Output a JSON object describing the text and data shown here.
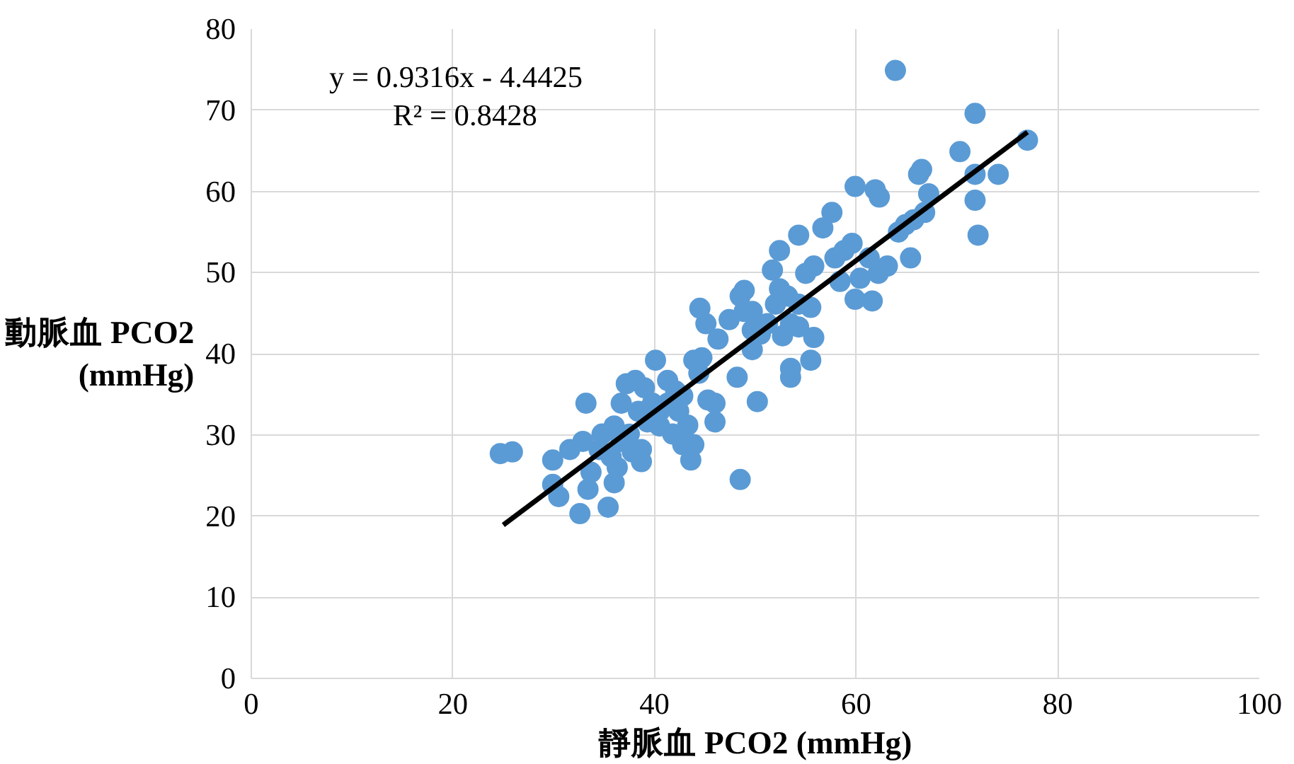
{
  "chart_data": {
    "type": "scatter",
    "xlabel": "靜脈血 PCO2 (mmHg)",
    "ylabel": "動脈血 PCO2\n(mmHg)",
    "xlim": [
      0,
      100
    ],
    "xticks": [
      0,
      20,
      40,
      60,
      80,
      100
    ],
    "ylim": [
      0,
      80
    ],
    "yticks": [
      0,
      10,
      20,
      30,
      40,
      50,
      60,
      70,
      80
    ],
    "grid": true,
    "annotations": [
      "y = 0.9316x - 4.4425",
      "R² = 0.8428"
    ],
    "series": [
      {
        "marker": "circle",
        "color": "#5b9bd5",
        "x": [
          24.7,
          25.9,
          29.9,
          29.9,
          30.5,
          32.6,
          33.2,
          33.4,
          33.7,
          31.6,
          32.9,
          34.8,
          35.4,
          36.0,
          36.3,
          36.0,
          36.7,
          37.2,
          38.1,
          39.0,
          38.4,
          37.5,
          38.7,
          38.7,
          37.8,
          39.8,
          40.1,
          40.5,
          41.3,
          42.1,
          41.8,
          42.8,
          43.3,
          43.6,
          43.9,
          43.9,
          44.7,
          44.5,
          45.1,
          45.3,
          46.0,
          46.0,
          46.3,
          48.2,
          48.5,
          48.5,
          48.9,
          48.9,
          49.7,
          49.7,
          50.5,
          50.2,
          51.2,
          51.7,
          52.4,
          52.4,
          52.7,
          53.2,
          53.5,
          53.5,
          53.5,
          54.3,
          54.3,
          55.0,
          55.5,
          55.5,
          55.8,
          55.8,
          56.7,
          57.6,
          57.9,
          58.4,
          58.8,
          59.6,
          59.9,
          59.9,
          60.4,
          61.3,
          61.6,
          61.9,
          62.3,
          62.2,
          63.1,
          63.9,
          64.2,
          64.9,
          65.4,
          65.7,
          66.2,
          66.5,
          66.8,
          67.2,
          70.3,
          71.8,
          71.8,
          71.8,
          72.1,
          74.1,
          77.0,
          34.5,
          35.7,
          36.7,
          39.3,
          40.5,
          41.3,
          42.4,
          42.8,
          44.4,
          47.4,
          49.7,
          52.0,
          54.3
        ],
        "values": [
          27.7,
          27.9,
          26.9,
          23.9,
          22.4,
          20.3,
          33.9,
          23.3,
          25.4,
          28.2,
          29.2,
          30.1,
          21.1,
          24.1,
          26.0,
          31.1,
          33.9,
          36.3,
          36.7,
          35.8,
          32.9,
          30.1,
          28.2,
          26.7,
          27.9,
          33.9,
          39.2,
          31.1,
          33.9,
          35.4,
          30.1,
          28.8,
          31.2,
          26.9,
          28.8,
          39.2,
          39.5,
          45.6,
          43.7,
          34.3,
          31.6,
          33.9,
          41.8,
          37.1,
          24.5,
          47.1,
          45.2,
          47.8,
          40.5,
          42.9,
          42.4,
          34.1,
          43.7,
          50.3,
          52.7,
          48.0,
          42.2,
          47.1,
          38.2,
          37.1,
          43.7,
          54.6,
          46.1,
          49.9,
          39.2,
          45.7,
          42.0,
          50.8,
          55.5,
          57.4,
          51.8,
          48.9,
          52.7,
          53.6,
          60.6,
          46.7,
          49.3,
          51.8,
          46.5,
          60.2,
          59.3,
          49.9,
          50.8,
          74.9,
          55.0,
          55.9,
          51.8,
          56.5,
          62.1,
          62.7,
          57.4,
          59.7,
          64.9,
          69.6,
          62.1,
          58.9,
          54.6,
          62.1,
          66.3,
          28.2,
          27.3,
          29.2,
          31.6,
          32.9,
          36.7,
          32.9,
          34.8,
          37.6,
          44.2,
          45.2,
          46.1,
          43.3
        ]
      },
      {
        "type": "line",
        "color": "#000000",
        "x": [
          25,
          77
        ],
        "values": [
          18.9,
          67.3
        ]
      }
    ]
  }
}
